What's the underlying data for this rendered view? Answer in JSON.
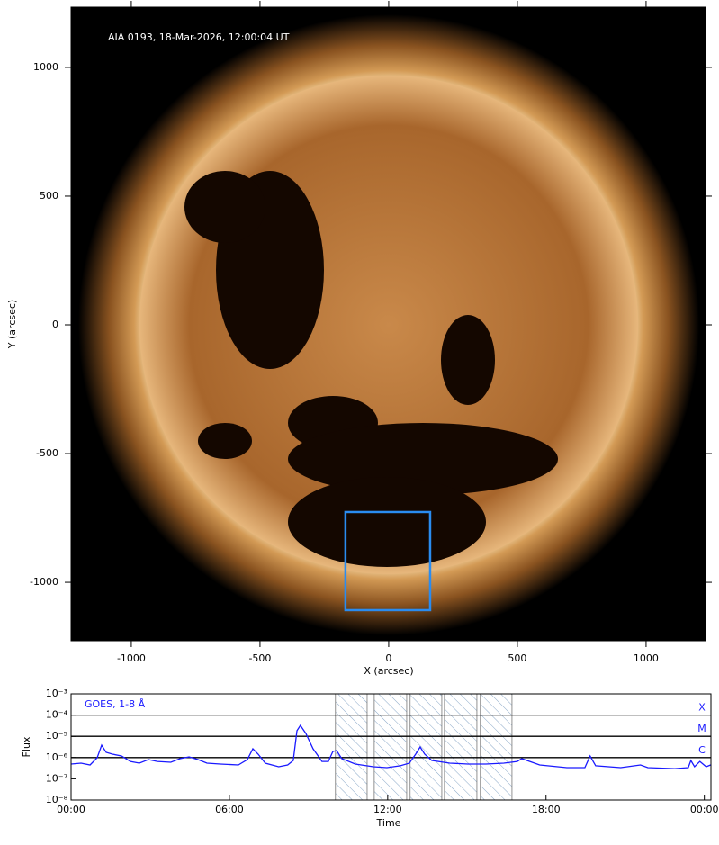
{
  "chart_data": [
    {
      "type": "image",
      "annotation": "AIA 0193, 18-Mar-2026, 12:00:04 UT",
      "xlabel": "X (arcsec)",
      "ylabel": "Y (arcsec)",
      "xlim": [
        -1234,
        1231
      ],
      "ylim": [
        -1227,
        1234
      ],
      "xticks": [
        -1000,
        -500,
        0,
        500,
        1000
      ],
      "yticks": [
        -1000,
        -500,
        0,
        500,
        1000
      ],
      "box": {
        "color": "#2a8cf0",
        "x": [
          -168,
          161
        ],
        "y": [
          -1108,
          -727
        ]
      }
    },
    {
      "type": "line",
      "xlabel": "Time",
      "ylabel": "Flux",
      "log_y": true,
      "xlim": [
        0,
        24.25
      ],
      "ylim": [
        1e-08,
        0.001
      ],
      "xticks": [
        {
          "value": 0,
          "label": "00:00"
        },
        {
          "value": 6,
          "label": "06:00"
        },
        {
          "value": 12,
          "label": "12:00"
        },
        {
          "value": 18,
          "label": "18:00"
        },
        {
          "value": 24,
          "label": "00:00"
        }
      ],
      "yticks": [
        {
          "value": 1e-08,
          "label": "10⁻⁸"
        },
        {
          "value": 1e-07,
          "label": "10⁻⁷"
        },
        {
          "value": 1e-06,
          "label": "10⁻⁶"
        },
        {
          "value": 1e-05,
          "label": "10⁻⁵"
        },
        {
          "value": 0.0001,
          "label": "10⁻⁴"
        },
        {
          "value": 0.001,
          "label": "10⁻³"
        }
      ],
      "levels": [
        {
          "value": 0.0001,
          "label": "X"
        },
        {
          "value": 1e-05,
          "label": "M"
        },
        {
          "value": 1e-06,
          "label": "C"
        }
      ],
      "windows": [
        [
          10.02,
          11.22
        ],
        [
          11.49,
          12.72
        ],
        [
          12.85,
          14.05
        ],
        [
          14.15,
          15.38
        ],
        [
          15.51,
          16.71
        ]
      ],
      "series": [
        {
          "name": "GOES, 1-8 Å",
          "color": "#1a1aff",
          "x": [
            0,
            0.38,
            0.72,
            0.99,
            1.16,
            1.33,
            1.57,
            1.91,
            2.25,
            2.59,
            2.93,
            3.27,
            3.78,
            4.13,
            4.47,
            4.81,
            5.15,
            5.66,
            6.34,
            6.68,
            6.89,
            7.09,
            7.36,
            7.87,
            8.21,
            8.42,
            8.56,
            8.69,
            8.9,
            9.17,
            9.51,
            9.75,
            9.92,
            10.06,
            10.26,
            10.77,
            11.46,
            11.97,
            12.48,
            12.82,
            13.06,
            13.23,
            13.4,
            13.67,
            14.35,
            15.04,
            15.72,
            16.4,
            16.91,
            17.08,
            17.76,
            18.79,
            19.47,
            19.67,
            19.88,
            20.83,
            21.58,
            21.86,
            22.88,
            23.39,
            23.49,
            23.63,
            23.83,
            24.07,
            24.24
          ],
          "values": [
            4.95e-07,
            5.45e-07,
            4.5e-07,
            9.8e-07,
            3.85e-06,
            1.76e-06,
            1.45e-06,
            1.19e-06,
            6.6e-07,
            5.45e-07,
            8.1e-07,
            6.6e-07,
            6e-07,
            8.9e-07,
            1.08e-06,
            8.1e-07,
            5.45e-07,
            4.95e-07,
            4.5e-07,
            8.1e-07,
            2.6e-06,
            1.45e-06,
            5.45e-07,
            3.7e-07,
            4.5e-07,
            7.3e-07,
            1.83e-05,
            3.3e-05,
            1.37e-05,
            2.6e-06,
            6.6e-07,
            6.6e-07,
            1.94e-06,
            2.14e-06,
            8.9e-07,
            4.95e-07,
            3.7e-07,
            3.35e-07,
            4.1e-07,
            5.45e-07,
            1.45e-06,
            3.16e-06,
            1.45e-06,
            7.3e-07,
            5.45e-07,
            4.95e-07,
            4.95e-07,
            5.45e-07,
            6.6e-07,
            8.9e-07,
            4.5e-07,
            3.35e-07,
            3.35e-07,
            1.19e-06,
            4.1e-07,
            3.35e-07,
            4.5e-07,
            3.35e-07,
            3e-07,
            3.35e-07,
            7.3e-07,
            3.7e-07,
            6.6e-07,
            3.7e-07,
            4.5e-07
          ]
        }
      ]
    }
  ]
}
